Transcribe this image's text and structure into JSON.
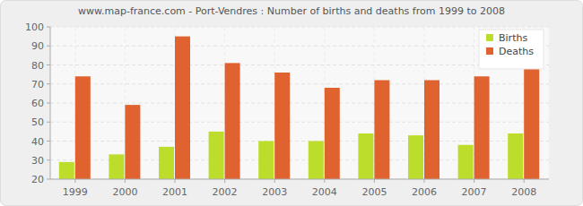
{
  "chart_data": {
    "type": "bar",
    "title": "www.map-france.com - Port-Vendres : Number of births and deaths from 1999 to 2008",
    "categories": [
      "1999",
      "2000",
      "2001",
      "2002",
      "2003",
      "2004",
      "2005",
      "2006",
      "2007",
      "2008"
    ],
    "series": [
      {
        "name": "Births",
        "color": "#bcdd2b",
        "values": [
          29,
          33,
          37,
          45,
          40,
          40,
          44,
          43,
          38,
          44
        ]
      },
      {
        "name": "Deaths",
        "color": "#e0632f",
        "values": [
          74,
          59,
          95,
          81,
          76,
          68,
          72,
          72,
          74,
          79
        ]
      }
    ],
    "ylim": [
      20,
      100
    ],
    "yticks": [
      20,
      30,
      40,
      50,
      60,
      70,
      80,
      90,
      100
    ],
    "grid": true,
    "legend": "top-right"
  }
}
